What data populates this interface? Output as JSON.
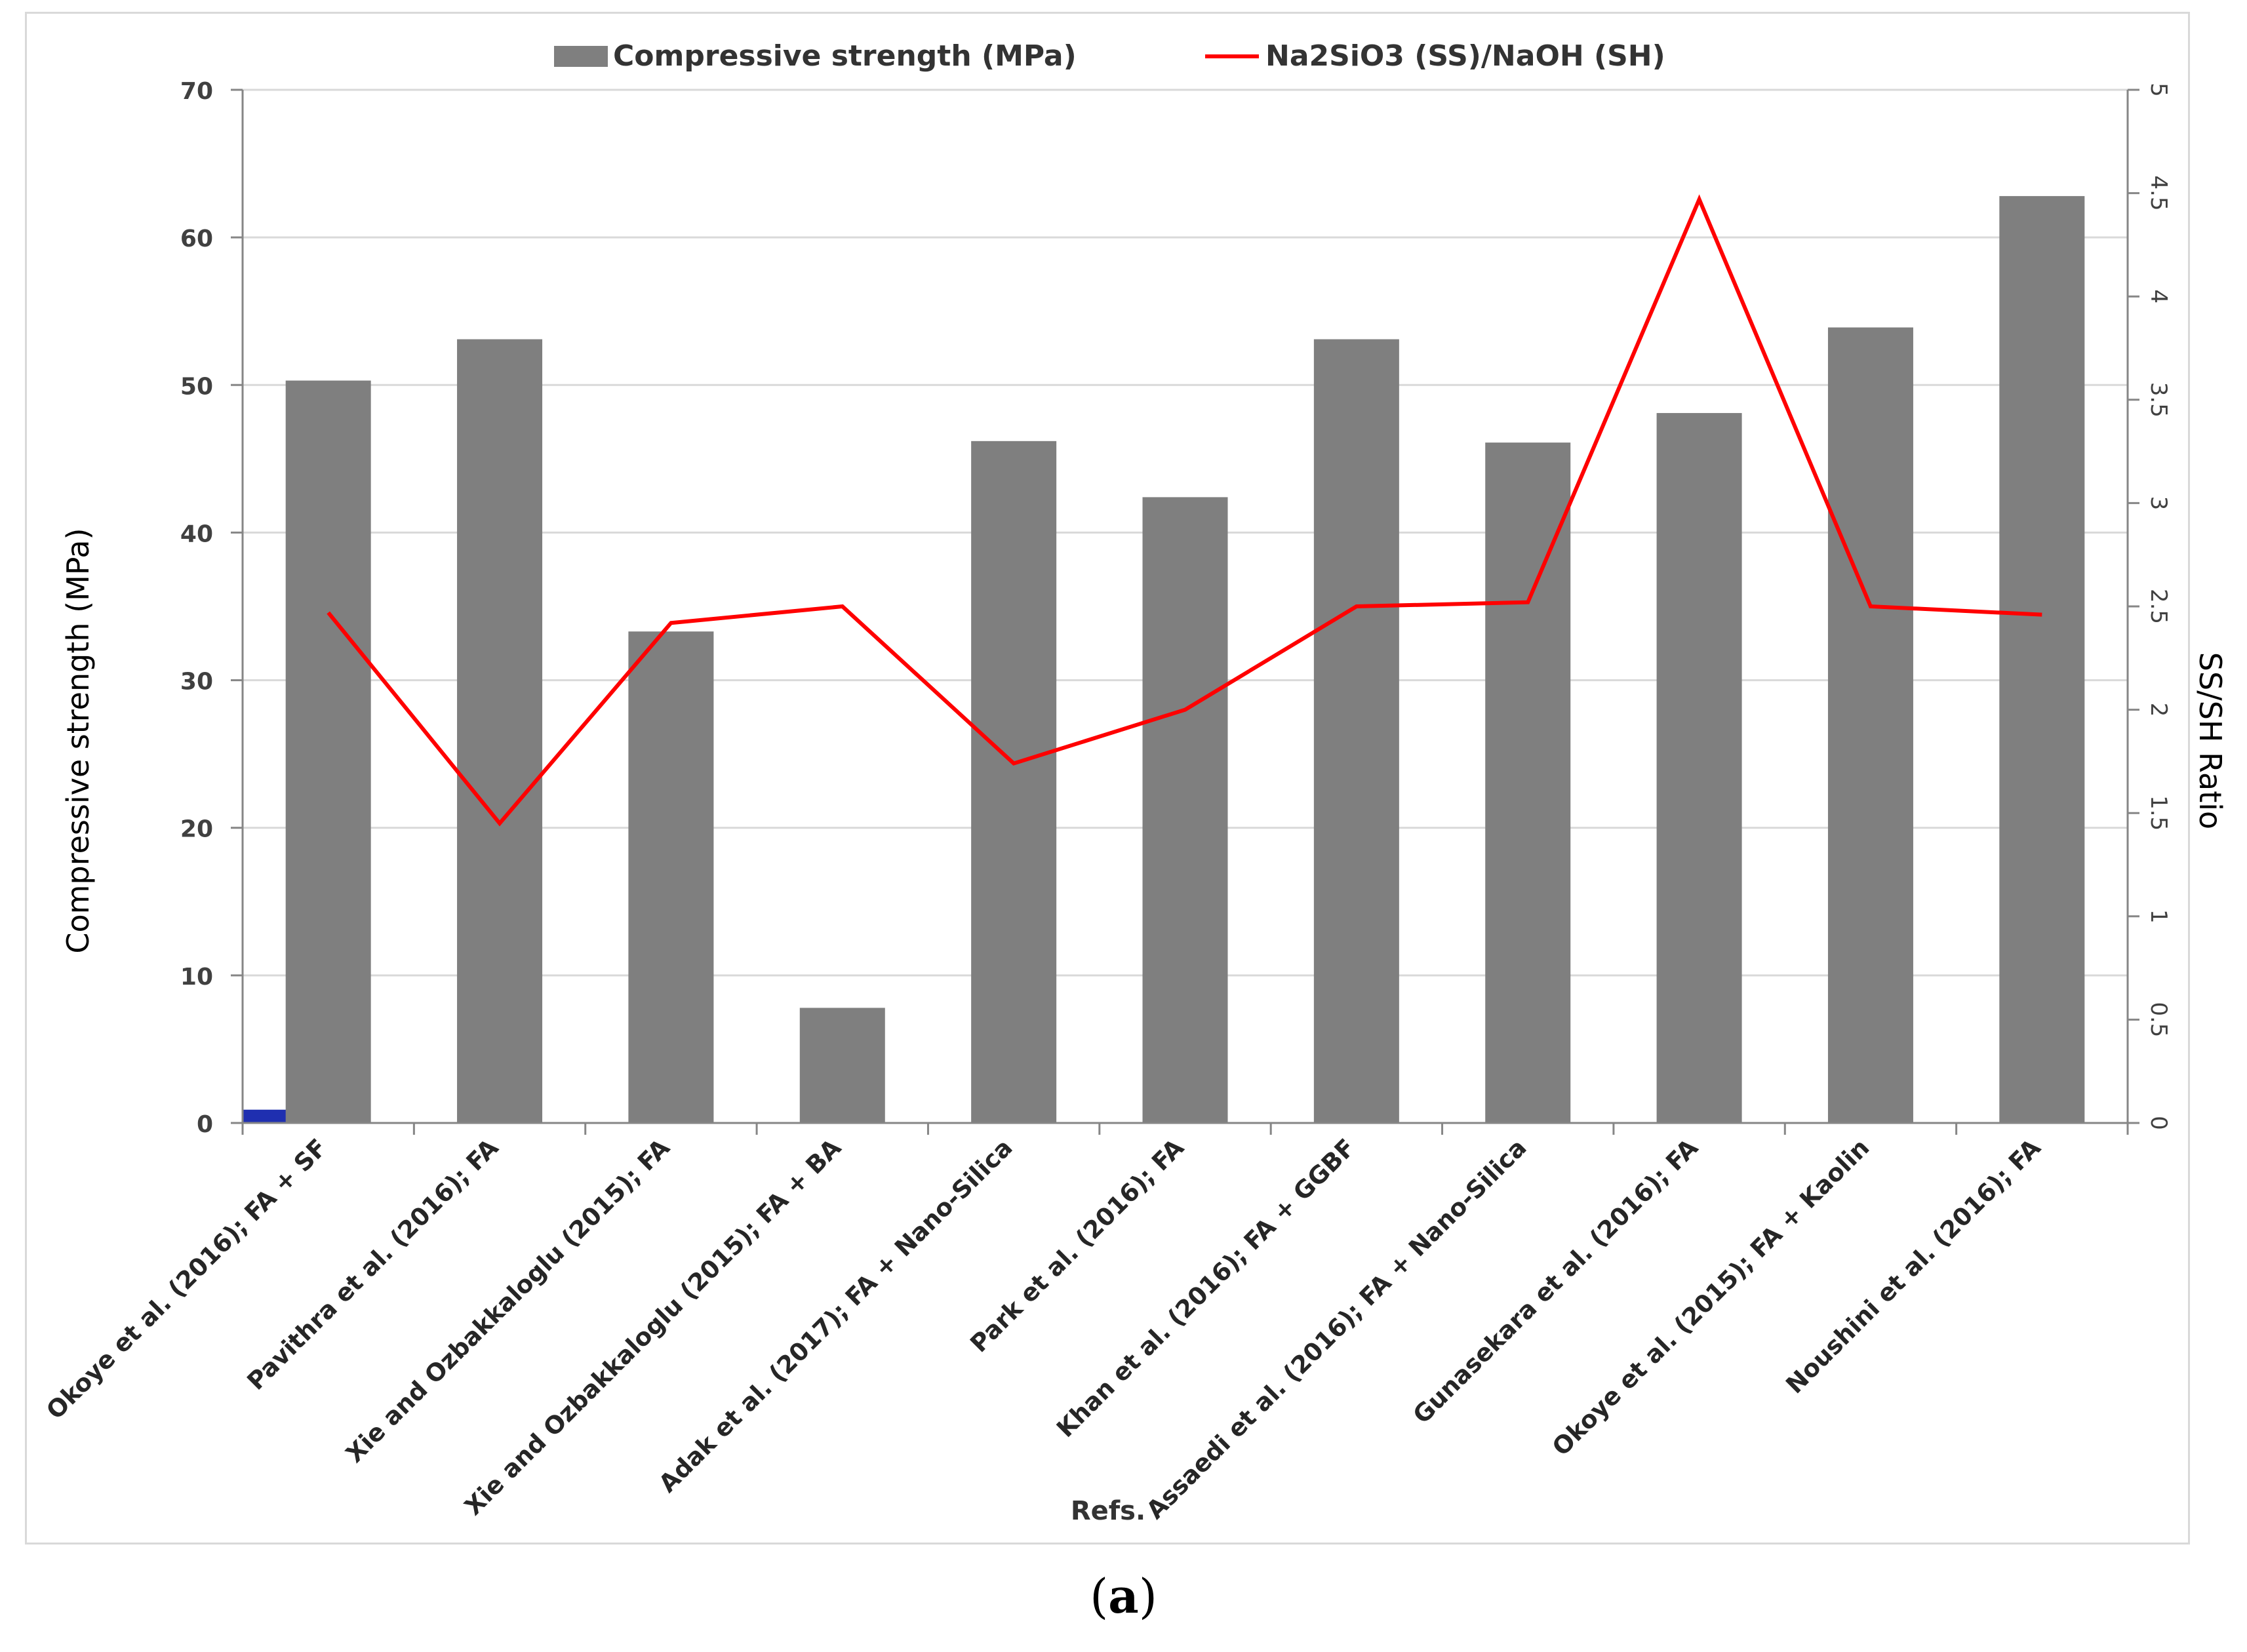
{
  "chart_data": {
    "type": "bar+line",
    "legend": {
      "bar_label": "Compressive strength (MPa)",
      "line_label": "Na2SiO3 (SS)/NaOH (SH)",
      "position": "top-center"
    },
    "categories": [
      "Okoye et al. (2016); FA + SF",
      "Pavithra et al. (2016); FA",
      "Xie and Ozbakkaloglu (2015); FA",
      "Xie and Ozbakkaloglu (2015); FA + BA",
      "Adak et al. (2017); FA + Nano-Silica",
      "Park et al. (2016); FA",
      "Khan et al. (2016); FA + GGBF",
      "Assaedi et al. (2016); FA + Nano-Silica",
      "Gunasekara et al. (2016); FA",
      "Okoye et al. (2015); FA + Kaolin",
      "Noushini et al. (2016); FA"
    ],
    "series": [
      {
        "name": "Compressive strength (MPa)",
        "axis": "left",
        "kind": "bar",
        "color": "#7f7f7f",
        "values": [
          50.3,
          53.1,
          33.3,
          7.8,
          46.2,
          42.4,
          53.1,
          46.1,
          48.1,
          53.9,
          62.8
        ]
      },
      {
        "name": "Na2SiO3 (SS)/NaOH (SH)",
        "axis": "right",
        "kind": "line",
        "color": "#ff0000",
        "values": [
          2.47,
          1.45,
          2.42,
          2.5,
          1.74,
          2.0,
          2.5,
          2.52,
          4.47,
          2.5,
          2.46
        ]
      }
    ],
    "marker_bar": {
      "value": 0.9,
      "color": "#1f2fb0"
    },
    "xlabel": "Refs.",
    "ylabel": "Compressive strength (MPa)",
    "y2label": "SS/SH Ratio",
    "ylim": [
      0,
      70
    ],
    "yticks": [
      "0",
      "10",
      "20",
      "30",
      "40",
      "50",
      "60",
      "70"
    ],
    "y2lim": [
      0,
      5
    ],
    "y2ticks": [
      "0",
      "0.5",
      "1",
      "1.5",
      "2",
      "2.5",
      "3",
      "3.5",
      "4",
      "4.5",
      "5"
    ],
    "grid": true
  },
  "caption": {
    "open": "(",
    "letter": "a",
    "close": ")"
  }
}
